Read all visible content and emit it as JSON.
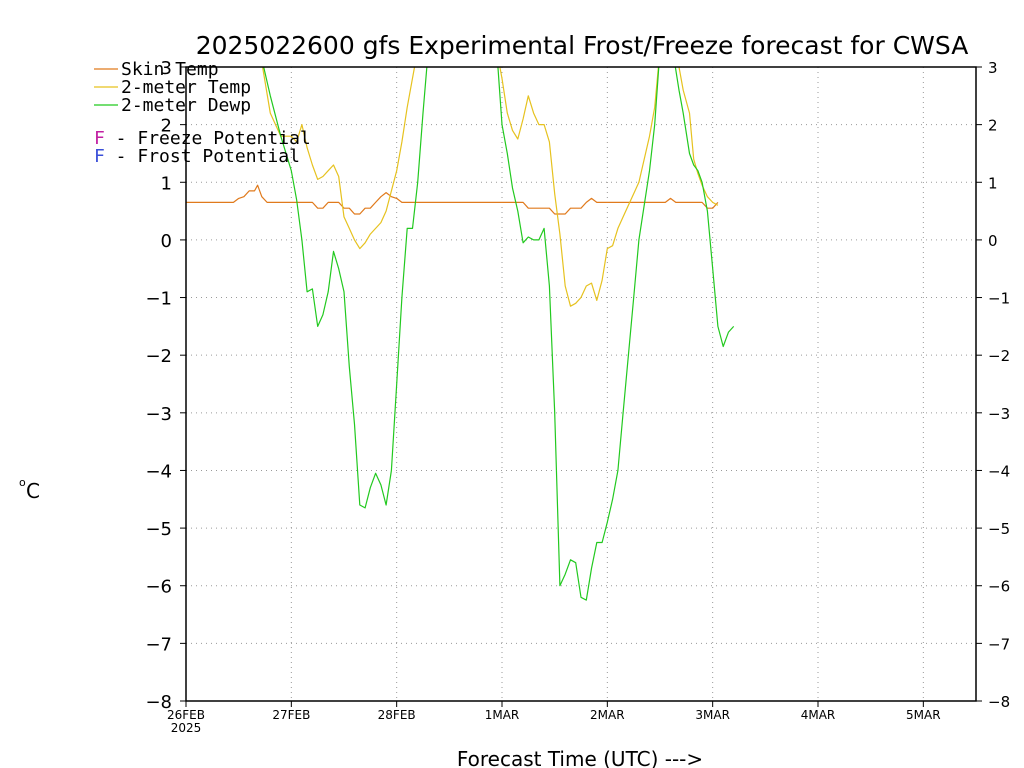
{
  "chart_data": {
    "type": "line",
    "title": "2025022600 gfs Experimental Frost/Freeze forecast for CWSA",
    "xlabel": "Forecast Time (UTC) --->",
    "ylabel": "°C",
    "ylabel_degree": "o",
    "ylabel_unit": "C",
    "ylim": [
      -8,
      3
    ],
    "xlim": [
      0,
      7.5
    ],
    "y_ticks": [
      -8,
      -7,
      -6,
      -5,
      -4,
      -3,
      -2,
      -1,
      0,
      1,
      2,
      3
    ],
    "x_ticks": [
      {
        "x": 0,
        "label": "26FEB",
        "sub": "2025"
      },
      {
        "x": 1,
        "label": "27FEB",
        "sub": ""
      },
      {
        "x": 2,
        "label": "28FEB",
        "sub": ""
      },
      {
        "x": 3,
        "label": "1MAR",
        "sub": ""
      },
      {
        "x": 4,
        "label": "2MAR",
        "sub": ""
      },
      {
        "x": 5,
        "label": "3MAR",
        "sub": ""
      },
      {
        "x": 6,
        "label": "4MAR",
        "sub": ""
      },
      {
        "x": 7,
        "label": "5MAR",
        "sub": ""
      }
    ],
    "grid": true,
    "legend_position": "top-left",
    "legend_lines": [
      {
        "label": "Skin Temp",
        "color": "#e07a1c"
      },
      {
        "label": "2-meter Temp",
        "color": "#e6c21f"
      },
      {
        "label": "2-meter Dewp",
        "color": "#22c91f"
      }
    ],
    "legend_flags": [
      {
        "letter": "F",
        "text": " - Freeze Potential",
        "color": "#c21fa2"
      },
      {
        "letter": "F",
        "text": " - Frost Potential",
        "color": "#3a4fd8"
      }
    ],
    "series": [
      {
        "name": "Skin Temp",
        "color": "#e07a1c",
        "points": [
          [
            0,
            0.65
          ],
          [
            0.45,
            0.65
          ],
          [
            0.5,
            0.72
          ],
          [
            0.55,
            0.75
          ],
          [
            0.6,
            0.85
          ],
          [
            0.65,
            0.85
          ],
          [
            0.68,
            0.95
          ],
          [
            0.72,
            0.75
          ],
          [
            0.77,
            0.65
          ],
          [
            1.2,
            0.65
          ],
          [
            1.25,
            0.55
          ],
          [
            1.3,
            0.55
          ],
          [
            1.35,
            0.65
          ],
          [
            1.45,
            0.65
          ],
          [
            1.5,
            0.55
          ],
          [
            1.55,
            0.55
          ],
          [
            1.6,
            0.45
          ],
          [
            1.65,
            0.45
          ],
          [
            1.7,
            0.55
          ],
          [
            1.75,
            0.55
          ],
          [
            1.8,
            0.65
          ],
          [
            1.85,
            0.75
          ],
          [
            1.9,
            0.82
          ],
          [
            1.95,
            0.75
          ],
          [
            2.0,
            0.72
          ],
          [
            2.05,
            0.65
          ],
          [
            3.2,
            0.65
          ],
          [
            3.25,
            0.55
          ],
          [
            3.45,
            0.55
          ],
          [
            3.5,
            0.45
          ],
          [
            3.6,
            0.45
          ],
          [
            3.65,
            0.55
          ],
          [
            3.75,
            0.55
          ],
          [
            3.8,
            0.65
          ],
          [
            3.85,
            0.72
          ],
          [
            3.9,
            0.65
          ],
          [
            4.55,
            0.65
          ],
          [
            4.6,
            0.72
          ],
          [
            4.65,
            0.65
          ],
          [
            4.9,
            0.65
          ],
          [
            4.95,
            0.55
          ],
          [
            5.0,
            0.55
          ],
          [
            5.05,
            0.65
          ]
        ]
      },
      {
        "name": "2-meter Temp",
        "color": "#e6c21f",
        "points": [
          [
            0.7,
            3.3
          ],
          [
            0.8,
            2.2
          ],
          [
            0.9,
            1.8
          ],
          [
            1.0,
            1.8
          ],
          [
            1.05,
            1.7
          ],
          [
            1.1,
            2.0
          ],
          [
            1.15,
            1.6
          ],
          [
            1.2,
            1.3
          ],
          [
            1.25,
            1.05
          ],
          [
            1.3,
            1.1
          ],
          [
            1.35,
            1.2
          ],
          [
            1.4,
            1.3
          ],
          [
            1.45,
            1.1
          ],
          [
            1.5,
            0.4
          ],
          [
            1.55,
            0.2
          ],
          [
            1.6,
            0.0
          ],
          [
            1.65,
            -0.15
          ],
          [
            1.7,
            -0.05
          ],
          [
            1.75,
            0.1
          ],
          [
            1.8,
            0.2
          ],
          [
            1.85,
            0.3
          ],
          [
            1.9,
            0.5
          ],
          [
            2.0,
            1.2
          ],
          [
            2.05,
            1.7
          ],
          [
            2.1,
            2.3
          ],
          [
            2.2,
            3.3
          ],
          [
            2.95,
            3.3
          ],
          [
            3.0,
            2.8
          ],
          [
            3.05,
            2.2
          ],
          [
            3.1,
            1.9
          ],
          [
            3.15,
            1.75
          ],
          [
            3.2,
            2.1
          ],
          [
            3.25,
            2.5
          ],
          [
            3.3,
            2.2
          ],
          [
            3.35,
            2.0
          ],
          [
            3.4,
            2.0
          ],
          [
            3.45,
            1.7
          ],
          [
            3.5,
            0.8
          ],
          [
            3.55,
            0.1
          ],
          [
            3.6,
            -0.8
          ],
          [
            3.65,
            -1.15
          ],
          [
            3.7,
            -1.1
          ],
          [
            3.75,
            -1.0
          ],
          [
            3.8,
            -0.8
          ],
          [
            3.85,
            -0.75
          ],
          [
            3.9,
            -1.05
          ],
          [
            3.95,
            -0.7
          ],
          [
            4.0,
            -0.15
          ],
          [
            4.05,
            -0.1
          ],
          [
            4.1,
            0.2
          ],
          [
            4.15,
            0.4
          ],
          [
            4.2,
            0.6
          ],
          [
            4.3,
            1.0
          ],
          [
            4.4,
            1.8
          ],
          [
            4.45,
            2.3
          ],
          [
            4.5,
            3.3
          ],
          [
            4.62,
            3.3
          ],
          [
            4.68,
            3.0
          ],
          [
            4.72,
            2.6
          ],
          [
            4.78,
            2.2
          ],
          [
            4.82,
            1.4
          ],
          [
            4.86,
            1.15
          ],
          [
            4.9,
            0.95
          ],
          [
            4.95,
            0.75
          ],
          [
            5.0,
            0.65
          ],
          [
            5.05,
            0.6
          ]
        ]
      },
      {
        "name": "2-meter Dewp",
        "color": "#22c91f",
        "points": [
          [
            0.7,
            3.3
          ],
          [
            0.8,
            2.5
          ],
          [
            0.9,
            1.8
          ],
          [
            1.0,
            1.2
          ],
          [
            1.05,
            0.7
          ],
          [
            1.1,
            0.0
          ],
          [
            1.15,
            -0.9
          ],
          [
            1.2,
            -0.85
          ],
          [
            1.25,
            -1.5
          ],
          [
            1.3,
            -1.3
          ],
          [
            1.35,
            -0.9
          ],
          [
            1.4,
            -0.2
          ],
          [
            1.45,
            -0.5
          ],
          [
            1.5,
            -0.9
          ],
          [
            1.55,
            -2.2
          ],
          [
            1.6,
            -3.2
          ],
          [
            1.65,
            -4.6
          ],
          [
            1.7,
            -4.65
          ],
          [
            1.75,
            -4.3
          ],
          [
            1.8,
            -4.05
          ],
          [
            1.85,
            -4.25
          ],
          [
            1.9,
            -4.6
          ],
          [
            1.95,
            -4.0
          ],
          [
            2.0,
            -2.5
          ],
          [
            2.05,
            -1.0
          ],
          [
            2.1,
            0.2
          ],
          [
            2.15,
            0.2
          ],
          [
            2.2,
            1.0
          ],
          [
            2.25,
            2.2
          ],
          [
            2.3,
            3.3
          ],
          [
            2.95,
            3.3
          ],
          [
            3.0,
            2.0
          ],
          [
            3.05,
            1.5
          ],
          [
            3.1,
            0.9
          ],
          [
            3.15,
            0.5
          ],
          [
            3.2,
            -0.05
          ],
          [
            3.25,
            0.05
          ],
          [
            3.3,
            0.0
          ],
          [
            3.35,
            0.0
          ],
          [
            3.4,
            0.2
          ],
          [
            3.45,
            -0.8
          ],
          [
            3.5,
            -3.0
          ],
          [
            3.55,
            -6.0
          ],
          [
            3.6,
            -5.8
          ],
          [
            3.65,
            -5.55
          ],
          [
            3.7,
            -5.6
          ],
          [
            3.75,
            -6.2
          ],
          [
            3.8,
            -6.25
          ],
          [
            3.85,
            -5.7
          ],
          [
            3.9,
            -5.25
          ],
          [
            3.95,
            -5.25
          ],
          [
            4.0,
            -4.9
          ],
          [
            4.05,
            -4.5
          ],
          [
            4.1,
            -4.0
          ],
          [
            4.15,
            -3.0
          ],
          [
            4.2,
            -2.0
          ],
          [
            4.25,
            -1.0
          ],
          [
            4.3,
            0.0
          ],
          [
            4.4,
            1.2
          ],
          [
            4.45,
            2.0
          ],
          [
            4.5,
            3.3
          ],
          [
            4.62,
            3.3
          ],
          [
            4.68,
            2.6
          ],
          [
            4.72,
            2.2
          ],
          [
            4.78,
            1.5
          ],
          [
            4.82,
            1.3
          ],
          [
            4.86,
            1.2
          ],
          [
            4.9,
            1.0
          ],
          [
            4.95,
            0.5
          ],
          [
            5.0,
            -0.5
          ],
          [
            5.05,
            -1.5
          ],
          [
            5.1,
            -1.85
          ],
          [
            5.15,
            -1.6
          ],
          [
            5.2,
            -1.5
          ]
        ]
      }
    ]
  }
}
